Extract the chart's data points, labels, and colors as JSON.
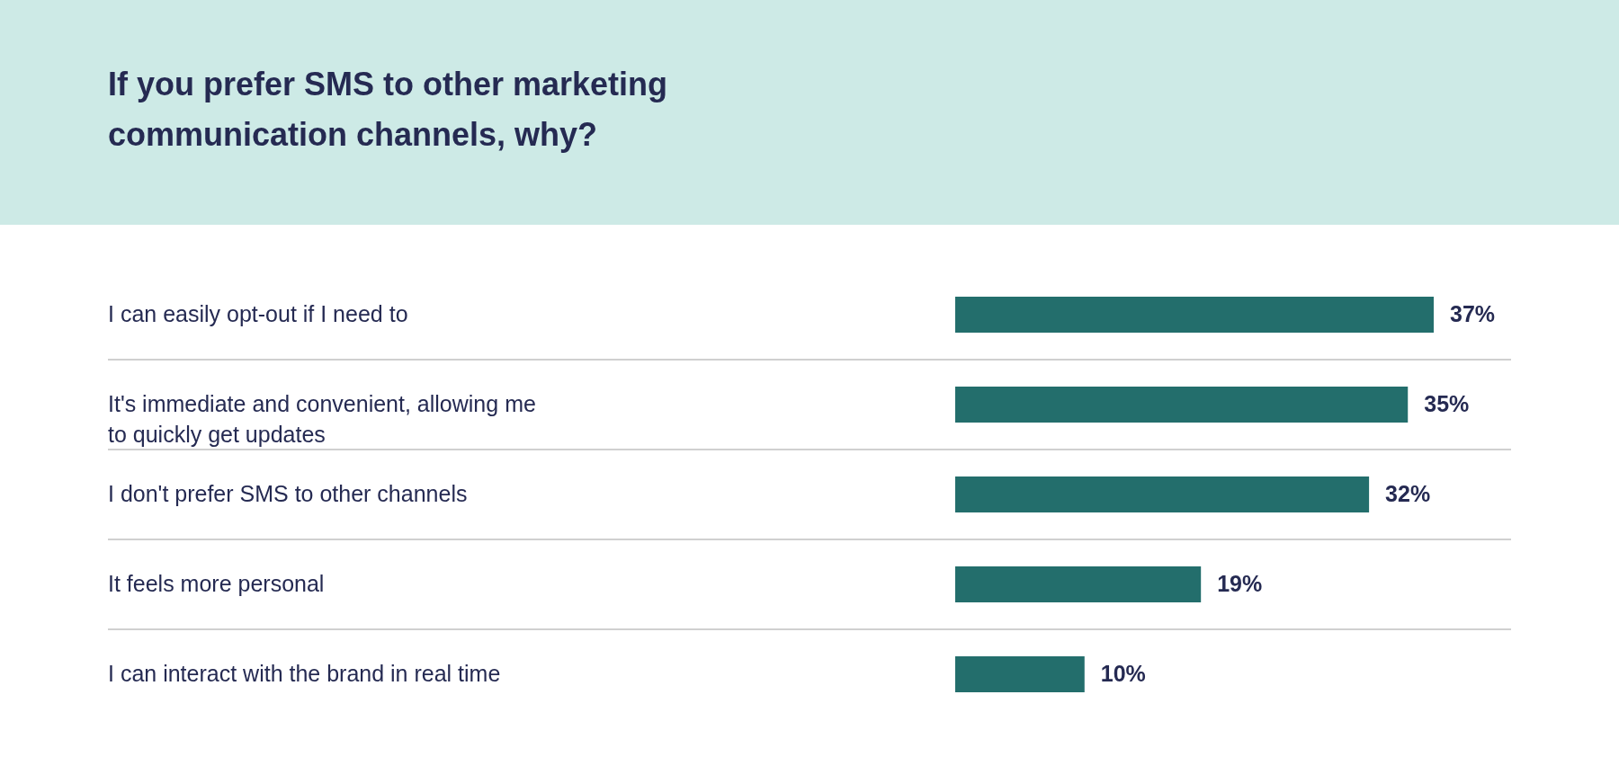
{
  "chart_data": {
    "type": "bar",
    "orientation": "horizontal",
    "title": "If you prefer SMS to other marketing communication channels, why?",
    "categories": [
      "I can easily opt-out if I need to",
      "It's immediate and convenient, allowing me to quickly get updates",
      "I don't prefer SMS to other channels",
      "It feels more personal",
      "I can interact with the brand in real time"
    ],
    "values": [
      37,
      35,
      32,
      19,
      10
    ],
    "value_labels": [
      "37%",
      "35%",
      "32%",
      "19%",
      "10%"
    ],
    "color": "#236e6c",
    "grid": "y"
  }
}
